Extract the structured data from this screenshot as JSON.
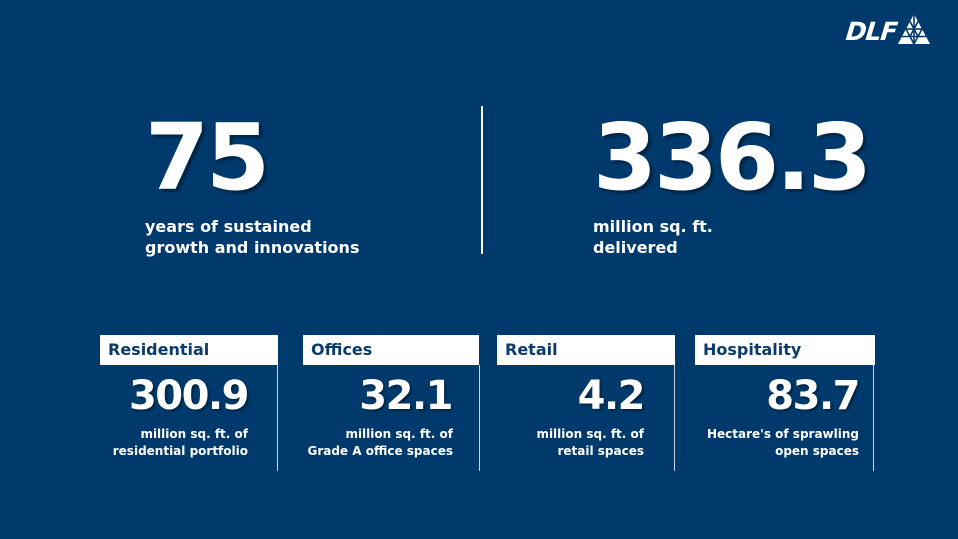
{
  "brand": {
    "logo_text": "DLF",
    "logo_icon": "triangle-grid-icon"
  },
  "highlights": [
    {
      "value": "75",
      "caption": "years of sustained\ngrowth and innovations"
    },
    {
      "value": "336.3",
      "caption": "million sq. ft.\ndelivered"
    }
  ],
  "segments": [
    {
      "label": "Residential",
      "value": "300.9",
      "caption": "million sq. ft. of\nresidential portfolio"
    },
    {
      "label": "Offices",
      "value": "32.1",
      "caption": "million sq. ft. of\nGrade A office spaces"
    },
    {
      "label": "Retail",
      "value": "4.2",
      "caption": "million sq. ft. of\nretail spaces"
    },
    {
      "label": "Hospitality",
      "value": "83.7",
      "caption": "Hectare's of sprawling\nopen spaces"
    }
  ],
  "colors": {
    "background": "#003A6C",
    "label_text": "#0B3B6B",
    "text": "#FFFFFF"
  }
}
